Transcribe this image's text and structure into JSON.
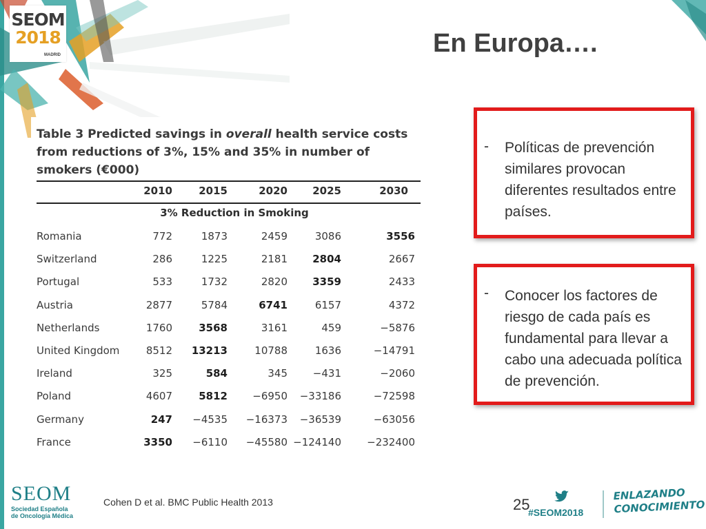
{
  "logo": {
    "name": "SEOM",
    "year": "2018",
    "city": "MADRID"
  },
  "title": "En Europa….",
  "table": {
    "caption_parts": [
      "Table 3 Predicted savings in ",
      "overall",
      " health service costs from reductions of 3%, 15% and 35% in number of smokers (€000)"
    ],
    "years": [
      "2010",
      "2015",
      "2020",
      "2025",
      "2030"
    ],
    "subheading": "3% Reduction in Smoking",
    "rows": [
      {
        "country": "Romania",
        "values": [
          "772",
          "1873",
          "2459",
          "3086",
          "3556"
        ],
        "bold_index": 4
      },
      {
        "country": "Switzerland",
        "values": [
          "286",
          "1225",
          "2181",
          "2804",
          "2667"
        ],
        "bold_index": 3
      },
      {
        "country": "Portugal",
        "values": [
          "533",
          "1732",
          "2820",
          "3359",
          "2433"
        ],
        "bold_index": 3
      },
      {
        "country": "Austria",
        "values": [
          "2877",
          "5784",
          "6741",
          "6157",
          "4372"
        ],
        "bold_index": 2
      },
      {
        "country": "Netherlands",
        "values": [
          "1760",
          "3568",
          "3161",
          "459",
          "−5876"
        ],
        "bold_index": 1
      },
      {
        "country": "United Kingdom",
        "values": [
          "8512",
          "13213",
          "10788",
          "1636",
          "−14791"
        ],
        "bold_index": 1
      },
      {
        "country": "Ireland",
        "values": [
          "325",
          "584",
          "345",
          "−431",
          "−2060"
        ],
        "bold_index": 1
      },
      {
        "country": "Poland",
        "values": [
          "4607",
          "5812",
          "−6950",
          "−33186",
          "−72598"
        ],
        "bold_index": 1
      },
      {
        "country": "Germany",
        "values": [
          "247",
          "−4535",
          "−16373",
          "−36539",
          "−63056"
        ],
        "bold_index": 0
      },
      {
        "country": "France",
        "values": [
          "3350",
          "−6110",
          "−45580",
          "−124140",
          "−232400"
        ],
        "bold_index": 0
      }
    ]
  },
  "notes": [
    {
      "dash": "-",
      "text": "Políticas de prevención similares provocan diferentes resultados entre países."
    },
    {
      "dash": "-",
      "text": "Conocer los factores de riesgo de cada país es fundamental para llevar a cabo una adecuada política de prevención."
    }
  ],
  "footer": {
    "seom": "SEOM",
    "seom_sub_1": "Sociedad Española",
    "seom_sub_2": "de Oncología Médica",
    "citation": "Cohen D et al. BMC Public Health 2013",
    "page": "25",
    "hashtag": "#SEOM2018",
    "slogan_1": "ENLAZANDO",
    "slogan_2": "CONOCIMIENTO",
    "icon": "twitter-icon"
  },
  "colors": {
    "accent": "#e21b1b",
    "teal": "#1f7f87",
    "orange": "#e5a024"
  }
}
